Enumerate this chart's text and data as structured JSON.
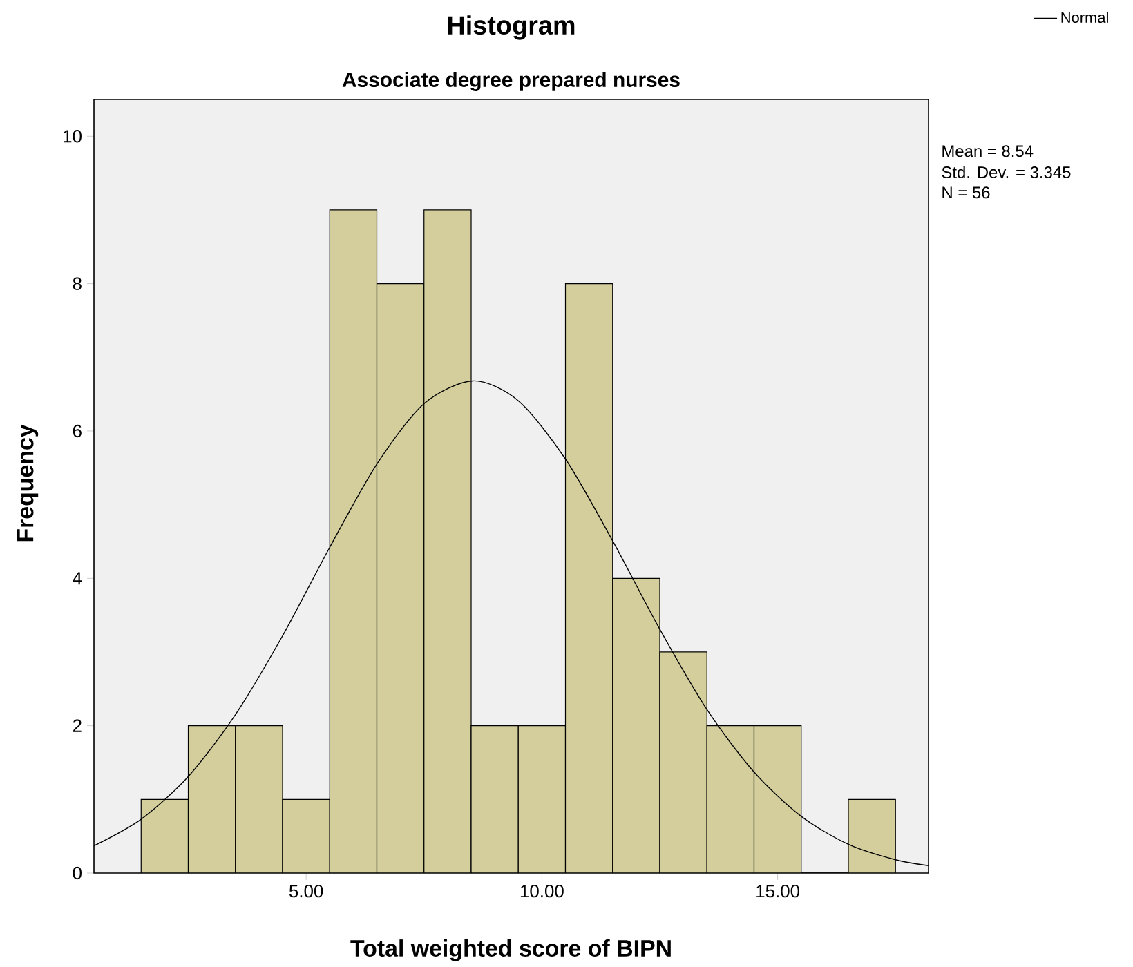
{
  "chart_data": {
    "type": "histogram",
    "title": "Histogram",
    "subtitle": "Associate degree prepared nurses",
    "xlabel": "Total weighted score of BIPN",
    "ylabel": "Frequency",
    "xlim": [
      0.5,
      18.2
    ],
    "ylim": [
      0,
      10.5
    ],
    "xticks": [
      {
        "value": 5,
        "label": "5.00"
      },
      {
        "value": 10,
        "label": "10.00"
      },
      {
        "value": 15,
        "label": "15.00"
      }
    ],
    "yticks": [
      0,
      2,
      4,
      6,
      8,
      10
    ],
    "legend": "top right",
    "grid": false,
    "annotations": [
      "Mean = 8.54",
      "Std. Dev. = 3.345",
      "N = 56"
    ],
    "series": [
      {
        "color": "#d3ce9c",
        "bins": [
          1.5,
          2.5,
          3.5,
          4.5,
          5.5,
          6.5,
          7.5,
          8.5,
          9.5,
          10.5,
          11.5,
          12.5,
          13.5,
          14.5,
          15.5,
          16.5,
          17.5
        ],
        "values": [
          1,
          2,
          2,
          1,
          9,
          8,
          9,
          2,
          2,
          8,
          4,
          3,
          2,
          2,
          0,
          1
        ]
      },
      {
        "type": "line",
        "name": "Normal",
        "color": "#000000",
        "x": [
          0.5,
          1.5,
          2.5,
          3.5,
          4.5,
          5.5,
          6.5,
          7.5,
          8.54,
          9.5,
          10.5,
          11.5,
          12.5,
          13.5,
          14.5,
          15.5,
          16.5,
          17.5,
          18.2
        ],
        "values": [
          0.37,
          0.73,
          1.31,
          2.15,
          3.22,
          4.42,
          5.55,
          6.37,
          6.68,
          6.41,
          5.62,
          4.51,
          3.31,
          2.22,
          1.37,
          0.77,
          0.39,
          0.18,
          0.1
        ]
      }
    ]
  }
}
